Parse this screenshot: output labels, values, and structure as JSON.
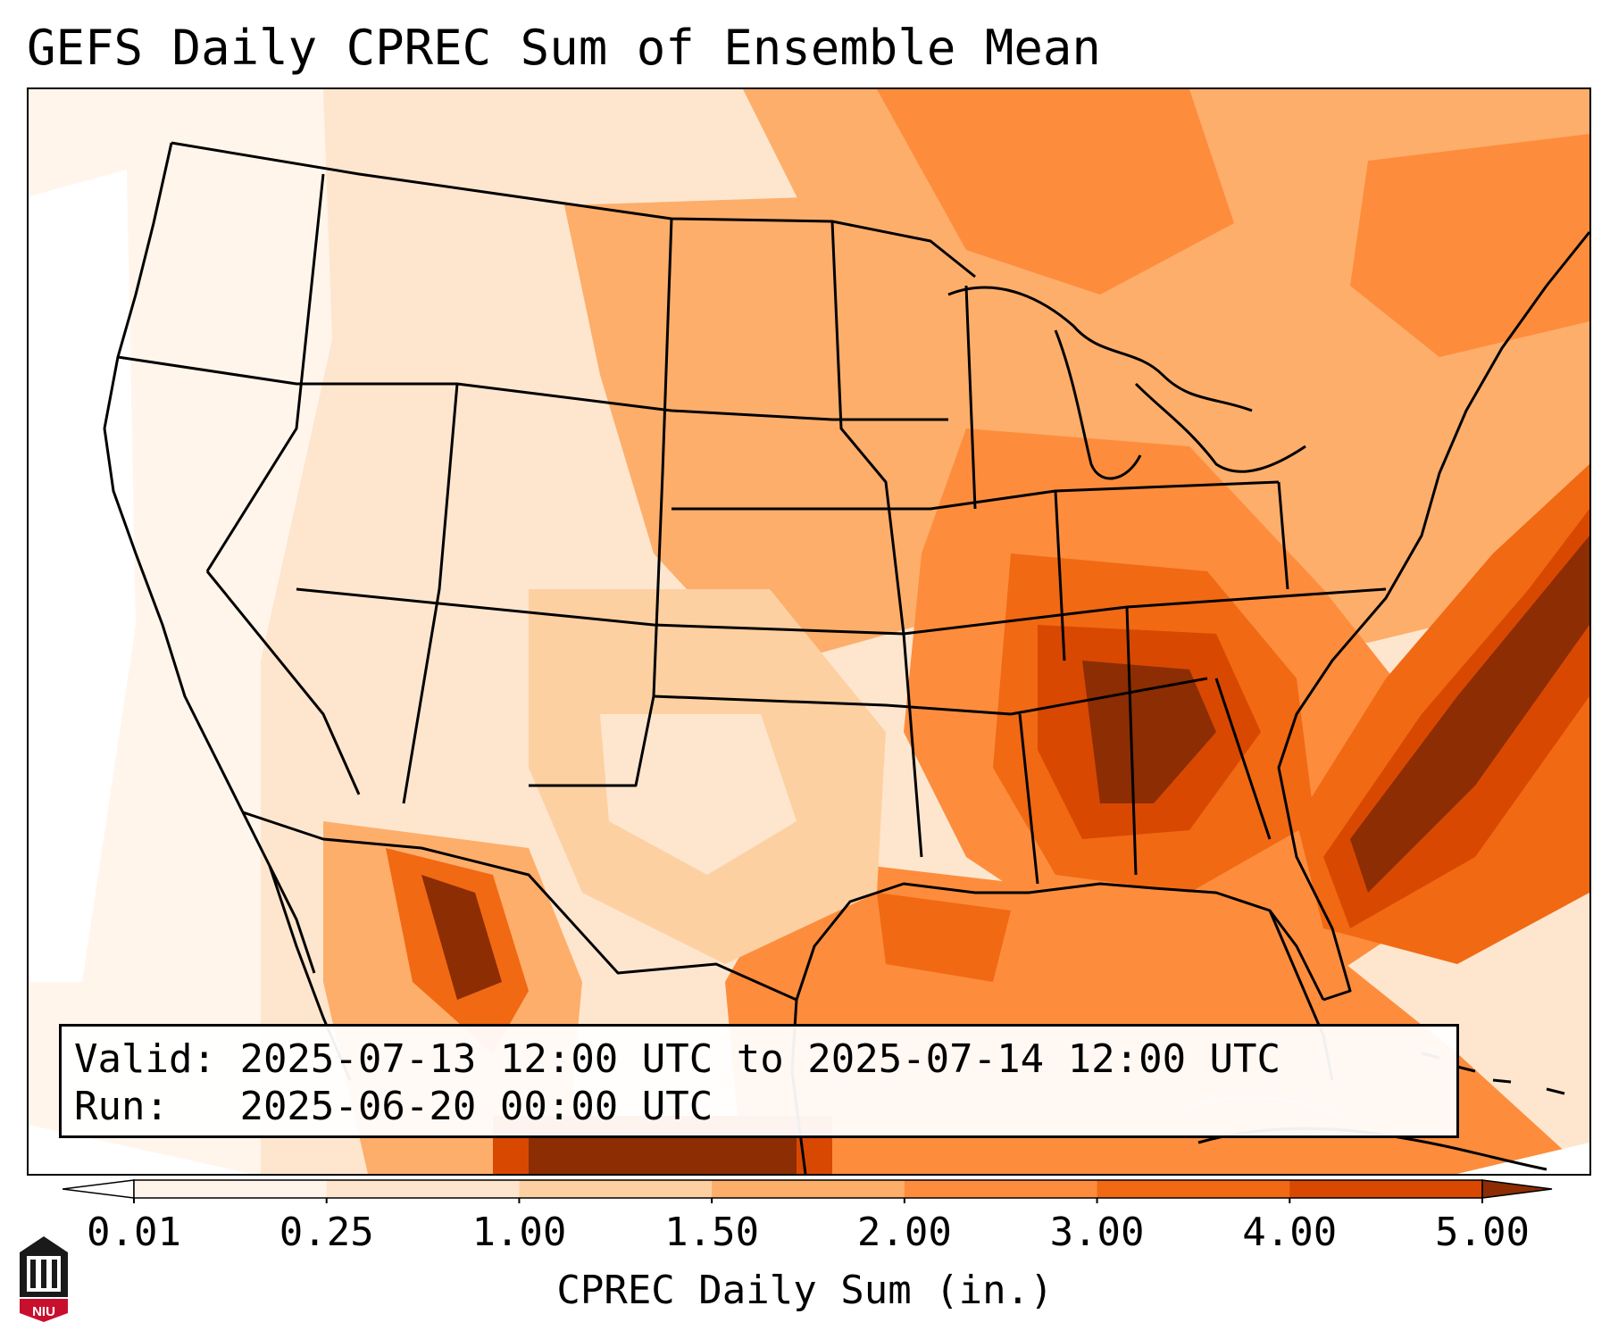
{
  "title": "GEFS Daily CPREC Sum of Ensemble Mean",
  "info": {
    "valid_label": "Valid:",
    "valid_value": "2025-07-13 12:00 UTC to 2025-07-14 12:00 UTC",
    "run_label": "Run:",
    "run_value": "2025-06-20 00:00 UTC"
  },
  "colorbar": {
    "label": "CPREC Daily Sum (in.)",
    "ticks": [
      "0.01",
      "0.25",
      "1.00",
      "1.50",
      "2.00",
      "3.00",
      "4.00",
      "5.00"
    ],
    "colors": [
      "#fff5eb",
      "#fee6ce",
      "#fdd0a2",
      "#fdae6b",
      "#fd8d3c",
      "#f16913",
      "#d94801",
      "#8c2d04"
    ],
    "under_color": "#ffffff",
    "over_color": "#8c2d04"
  },
  "logo": {
    "text": "NIU",
    "colors": {
      "badge": "#c8102e",
      "body": "#1a1a1a"
    }
  }
}
